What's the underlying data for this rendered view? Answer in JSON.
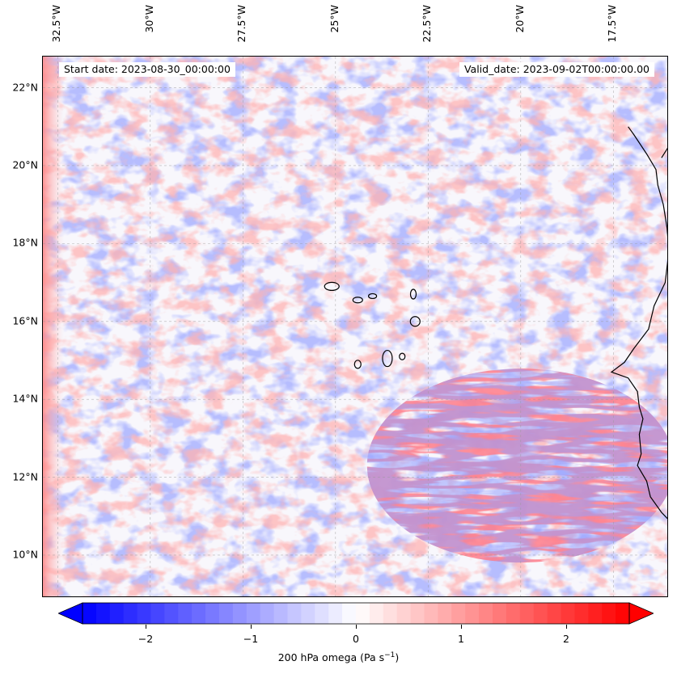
{
  "map": {
    "start_date": "Start date: 2023-08-30_00:00:00",
    "valid_date": "Valid_date: 2023-09-02T00:00:00.00",
    "extent": {
      "lon_min": -32.9,
      "lon_max": -16.0,
      "lat_min": 8.9,
      "lat_max": 22.8
    },
    "lat_ticks": [
      {
        "value": 22,
        "label": "22°N"
      },
      {
        "value": 20,
        "label": "20°N"
      },
      {
        "value": 18,
        "label": "18°N"
      },
      {
        "value": 16,
        "label": "16°N"
      },
      {
        "value": 14,
        "label": "14°N"
      },
      {
        "value": 12,
        "label": "12°N"
      },
      {
        "value": 10,
        "label": "10°N"
      }
    ],
    "lon_ticks": [
      {
        "value": -32.5,
        "label": "32.5°W"
      },
      {
        "value": -30,
        "label": "30°W"
      },
      {
        "value": -27.5,
        "label": "27.5°W"
      },
      {
        "value": -25,
        "label": "25°W"
      },
      {
        "value": -22.5,
        "label": "22.5°W"
      },
      {
        "value": -20,
        "label": "20°W"
      },
      {
        "value": -17.5,
        "label": "17.5°W"
      }
    ],
    "field_colors": {
      "negative": "#0000ff",
      "zero": "#ffffff",
      "positive": "#ff0000"
    },
    "grid": true
  },
  "colorbar": {
    "label_main": "200 hPa omega (Pa s",
    "label_exp": "−1",
    "label_end": ")",
    "range": [
      -2.6,
      2.6
    ],
    "ticks": [
      {
        "value": -2,
        "label": "−2"
      },
      {
        "value": -1,
        "label": "−1"
      },
      {
        "value": 0,
        "label": "0"
      },
      {
        "value": 1,
        "label": "1"
      },
      {
        "value": 2,
        "label": "2"
      }
    ],
    "cmap": "bwr",
    "extend": "both"
  }
}
